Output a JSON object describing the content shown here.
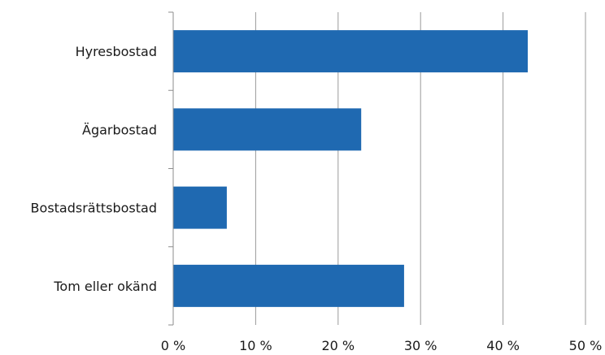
{
  "chart_data": {
    "type": "bar",
    "orientation": "horizontal",
    "categories": [
      "Hyresbostad",
      "Ägarbostad",
      "Bostadsrättsbostad",
      "Tom eller okänd"
    ],
    "values": [
      43,
      22.8,
      6.5,
      28
    ],
    "xlim": [
      0,
      50
    ],
    "x_ticks": [
      "0 %",
      "10 %",
      "20 %",
      "30 %",
      "40 %",
      "50 %"
    ],
    "grid": "vertical",
    "legend": "none",
    "colors": {
      "bar": "#1f69b1",
      "grid": "#9a9a9a",
      "axis": "#8c8c8c"
    }
  }
}
